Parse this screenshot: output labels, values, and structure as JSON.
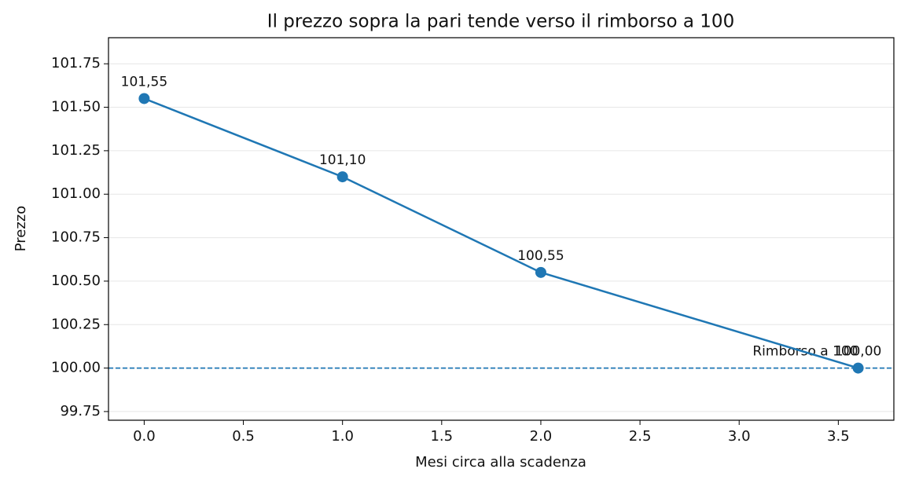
{
  "chart_data": {
    "type": "line",
    "title": "Il prezzo sopra la pari tende verso il rimborso a 100",
    "xlabel": "Mesi circa alla scadenza",
    "ylabel": "Prezzo",
    "x": [
      0,
      1,
      2,
      3.6
    ],
    "series": [
      {
        "name": "Prezzo",
        "color": "#1f77b4",
        "values": [
          101.55,
          101.1,
          100.55,
          100.0
        ],
        "value_labels": [
          "101,55",
          "101,10",
          "100,55",
          "100,00"
        ]
      }
    ],
    "hline": {
      "value": 100,
      "label": "Rimborso a 100",
      "color": "#1f77b4"
    },
    "xlim": [
      -0.18,
      3.78
    ],
    "ylim": [
      99.7,
      101.9
    ],
    "xticks": [
      {
        "value": 0,
        "label": "0.0"
      },
      0.5,
      {
        "value": 1,
        "label": "1.0"
      },
      1.5,
      {
        "value": 2,
        "label": "2.0"
      },
      2.5,
      {
        "value": 3,
        "label": "3.0"
      },
      3.5
    ],
    "yticks": [
      99.75,
      {
        "value": 100,
        "label": "100.00"
      },
      100.25,
      {
        "value": 100.5,
        "label": "100.50"
      },
      100.75,
      {
        "value": 101,
        "label": "101.00"
      },
      101.25,
      {
        "value": 101.5,
        "label": "101.50"
      },
      101.75
    ],
    "grid": true
  }
}
